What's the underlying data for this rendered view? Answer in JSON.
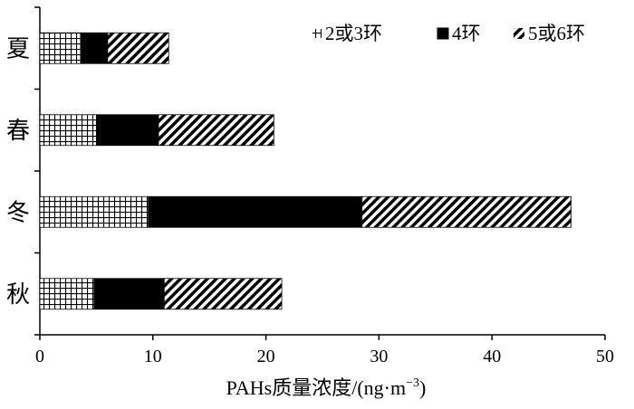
{
  "chart_data": {
    "type": "bar",
    "orientation": "horizontal",
    "stacked": true,
    "categories": [
      "秋",
      "冬",
      "春",
      "夏"
    ],
    "series": [
      {
        "name": "2或3环",
        "pattern": "grid",
        "values": [
          4.8,
          9.6,
          5.0,
          3.6
        ]
      },
      {
        "name": "4环",
        "pattern": "solid",
        "values": [
          6.2,
          18.9,
          5.5,
          2.4
        ]
      },
      {
        "name": "5或6环",
        "pattern": "diagonal-stripes",
        "values": [
          10.4,
          18.5,
          10.2,
          5.4
        ]
      }
    ],
    "xlim": [
      0,
      50
    ],
    "xticks": [
      "0",
      "10",
      "20",
      "30",
      "40",
      "50"
    ],
    "xlabel": "PAHs质量浓度/(ng·m",
    "xlabel_superscript": "−3",
    "xlabel_suffix": ")",
    "ylabel": "",
    "title": "",
    "legend_position": "top-right",
    "grid": false
  }
}
